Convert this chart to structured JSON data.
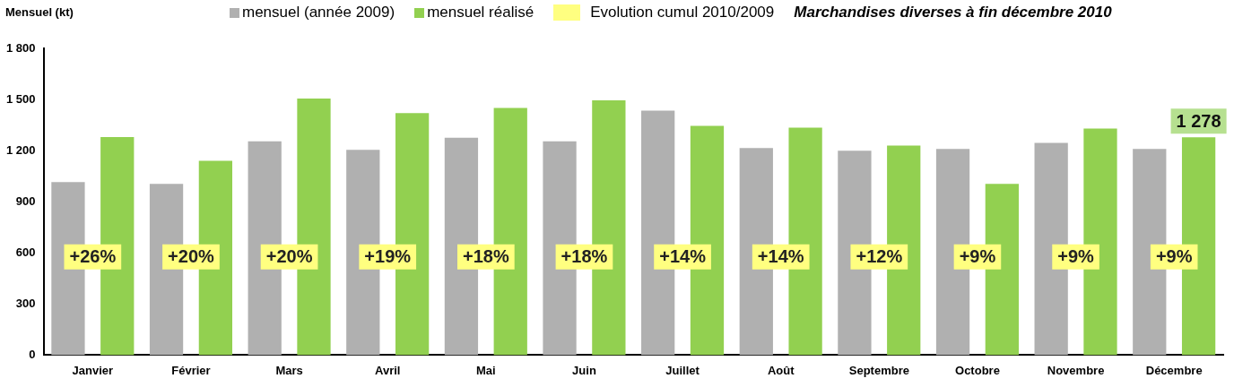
{
  "chart_data": {
    "type": "bar",
    "title": "Marchandises diverses à fin décembre 2010",
    "ylabel": "Mensuel (kt)",
    "categories": [
      "Janvier",
      "Février",
      "Mars",
      "Avril",
      "Mai",
      "Juin",
      "Juillet",
      "Août",
      "Septembre",
      "Octobre",
      "Novembre",
      "Décembre"
    ],
    "series": [
      {
        "name": "mensuel (année 2009)",
        "color": "#b0b0b0",
        "values": [
          1015,
          1005,
          1255,
          1205,
          1275,
          1255,
          1435,
          1215,
          1200,
          1210,
          1245,
          1210
        ]
      },
      {
        "name": "mensuel réalisé",
        "color": "#92d050",
        "values": [
          1280,
          1140,
          1505,
          1420,
          1450,
          1495,
          1345,
          1335,
          1230,
          1005,
          1330,
          1278
        ],
        "value_labels": [
          null,
          null,
          null,
          null,
          null,
          null,
          null,
          null,
          null,
          null,
          null,
          "1 278"
        ]
      }
    ],
    "annotations": [
      "Evolution cumul 2010/2009",
      "+26%",
      "+20%",
      "+20%",
      "+19%",
      "+18%",
      "+18%",
      "+14%",
      "+14%",
      "+12%",
      "+9%",
      "+9%",
      "+9%"
    ],
    "ylim": [
      0,
      1800
    ],
    "yticks": [
      0,
      300,
      600,
      900,
      {
        "value": 1200,
        "label": "1 200"
      },
      {
        "value": 1500,
        "label": "1 500"
      },
      {
        "value": 1800,
        "label": "1 800"
      }
    ],
    "grid": false,
    "legend": "top"
  }
}
